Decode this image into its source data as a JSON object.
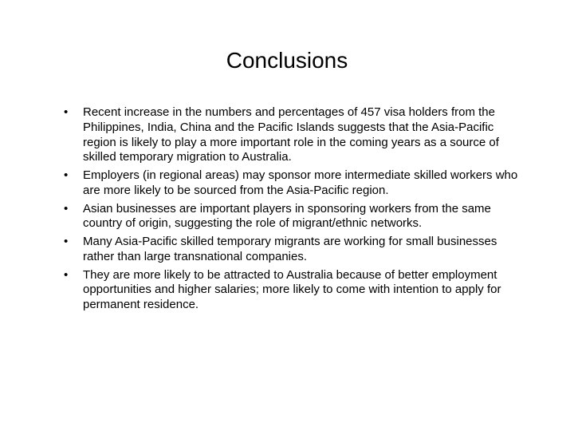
{
  "slide": {
    "title": "Conclusions",
    "title_fontsize": 28,
    "title_color": "#000000",
    "body_fontsize": 15,
    "body_color": "#000000",
    "background_color": "#ffffff",
    "bullets": [
      "Recent increase in the numbers and percentages of 457 visa holders from the Philippines, India, China and the Pacific Islands suggests that the Asia-Pacific region is likely to play a more important role in the coming years as a source of skilled temporary migration to Australia.",
      "Employers (in regional areas) may sponsor more intermediate skilled workers who are more likely to be sourced from the Asia-Pacific region.",
      "Asian businesses are important players in sponsoring workers from the same country of origin, suggesting the role of migrant/ethnic networks.",
      "Many Asia-Pacific skilled temporary migrants are working for small businesses rather than large transnational companies.",
      "They are more likely to be attracted to Australia because of better employment opportunities and higher salaries; more likely to come with intention to apply for permanent residence."
    ]
  }
}
